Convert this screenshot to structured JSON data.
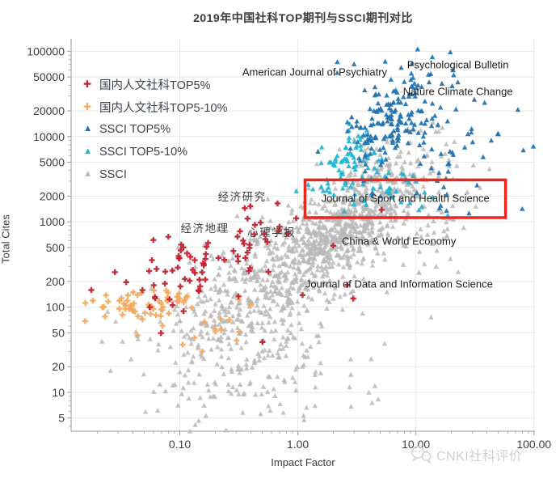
{
  "title": "2019年中国社科TOP期刊与SSCI期刊对比",
  "legend": {
    "items": [
      {
        "id": "domestic-top5",
        "label": "国内人文社科TOP5%",
        "marker": "plus",
        "color": "#c32231"
      },
      {
        "id": "domestic-top5-10",
        "label": "国内人文社科TOP5-10%",
        "marker": "plus",
        "color": "#f2aa60"
      },
      {
        "id": "ssci-top5",
        "label": "SSCI TOP5%",
        "marker": "triangle",
        "color": "#2273b2"
      },
      {
        "id": "ssci-top5-10",
        "label": "SSCI TOP5-10%",
        "marker": "triangle",
        "color": "#22b5d1"
      },
      {
        "id": "ssci",
        "label": "SSCI",
        "marker": "triangle",
        "color": "#b9b9b9"
      }
    ]
  },
  "watermark": {
    "icon": "wechat-icon",
    "text": "CNKI社科评价"
  },
  "chart_data": {
    "type": "scatter",
    "title": "2019年中国社科TOP期刊与SSCI期刊对比",
    "xlabel": "Impact Factor",
    "ylabel": "Total Cites",
    "x_scale": "log",
    "y_scale": "log",
    "x_range": [
      0.012,
      102
    ],
    "y_range": [
      3.5,
      140000
    ],
    "grid": true,
    "legend_position": "top-left",
    "x_ticks": [
      {
        "value": 0.1,
        "label": "0.10"
      },
      {
        "value": 1,
        "label": "1.00"
      },
      {
        "value": 10,
        "label": "10.00"
      },
      {
        "value": 100,
        "label": "100.00"
      }
    ],
    "y_ticks": [
      {
        "value": 100000,
        "label": "100000"
      },
      {
        "value": 50000,
        "label": "50000"
      },
      {
        "value": 20000,
        "label": "20000"
      },
      {
        "value": 10000,
        "label": "10000"
      },
      {
        "value": 5000,
        "label": "5000"
      },
      {
        "value": 2000,
        "label": "2000"
      },
      {
        "value": 1000,
        "label": "1000"
      },
      {
        "value": 500,
        "label": "500"
      },
      {
        "value": 200,
        "label": "200"
      },
      {
        "value": 100,
        "label": "100"
      },
      {
        "value": 50,
        "label": "50"
      },
      {
        "value": 20,
        "label": "20"
      },
      {
        "value": 10,
        "label": "10"
      },
      {
        "value": 5,
        "label": "5"
      }
    ],
    "series": [
      {
        "id": "ssci",
        "name": "SSCI",
        "marker": "triangle",
        "color": "#b9b9b9",
        "opacity": 0.85,
        "seed": 7,
        "clusters": [
          {
            "n": 650,
            "cx": 0.42,
            "cy": 3.02,
            "sx": 0.3,
            "sy": 0.4,
            "rho": 0.72
          },
          {
            "n": 420,
            "cx": -0.28,
            "cy": 2.25,
            "sx": 0.42,
            "sy": 0.45,
            "rho": 0.55
          },
          {
            "n": 140,
            "cx": -0.55,
            "cy": 1.4,
            "sx": 0.45,
            "sy": 0.4,
            "rho": 0.25
          },
          {
            "n": 90,
            "cx": 1.05,
            "cy": 3.15,
            "sx": 0.28,
            "sy": 0.45,
            "rho": 0.2
          },
          {
            "n": 40,
            "cx": 0.1,
            "cy": 1.05,
            "sx": 0.5,
            "sy": 0.3,
            "rho": 0.2
          }
        ],
        "extra_points_log10": []
      },
      {
        "id": "ssci-top5-10",
        "name": "SSCI TOP5-10%",
        "marker": "triangle",
        "color": "#22b5d1",
        "opacity": 0.95,
        "seed": 3,
        "clusters": [
          {
            "n": 80,
            "cx": 0.45,
            "cy": 3.72,
            "sx": 0.16,
            "sy": 0.22,
            "rho": 0.45
          },
          {
            "n": 30,
            "cx": 0.83,
            "cy": 3.38,
            "sx": 0.2,
            "sy": 0.14,
            "rho": 0.2
          }
        ],
        "extra_points_log10": [
          [
            0.95,
            3.22
          ],
          [
            1.05,
            3.18
          ]
        ]
      },
      {
        "id": "ssci-top5",
        "name": "SSCI TOP5%",
        "marker": "triangle",
        "color": "#2273b2",
        "opacity": 0.95,
        "seed": 5,
        "clusters": [
          {
            "n": 145,
            "cx": 0.78,
            "cy": 4.22,
            "sx": 0.18,
            "sy": 0.26,
            "rho": 0.35
          },
          {
            "n": 45,
            "cx": 1.25,
            "cy": 3.95,
            "sx": 0.33,
            "sy": 0.33,
            "rho": 0.1
          },
          {
            "n": 12,
            "cx": 0.95,
            "cy": 4.75,
            "sx": 0.28,
            "sy": 0.12,
            "rho": 0.0
          }
        ],
        "extra_points_log10": [
          [
            0.74,
            4.88
          ],
          [
            1.32,
            4.72
          ],
          [
            1.34,
            4.32
          ],
          [
            1.22,
            4.62
          ],
          [
            1.91,
            3.84
          ],
          [
            0.63,
            3.34
          ],
          [
            0.7,
            3.3
          ],
          [
            1.26,
            3.13
          ],
          [
            1.2,
            3.16
          ],
          [
            1.45,
            3.1
          ],
          [
            1.57,
            3.76
          ],
          [
            1.21,
            3.19
          ]
        ]
      },
      {
        "id": "domestic-top5-10",
        "name": "国内人文社科TOP5-10%",
        "marker": "plus",
        "color": "#f2aa60",
        "opacity": 0.95,
        "seed": 9,
        "clusters": [
          {
            "n": 60,
            "cx": -1.28,
            "cy": 1.99,
            "sx": 0.26,
            "sy": 0.11,
            "rho": 0.15
          },
          {
            "n": 12,
            "cx": -0.8,
            "cy": 1.78,
            "sx": 0.22,
            "sy": 0.18,
            "rho": 0.2
          }
        ],
        "extra_points_log10": [
          [
            -0.81,
            1.48
          ],
          [
            -0.4,
            2.02
          ],
          [
            -1.1,
            2.17
          ]
        ]
      },
      {
        "id": "domestic-top5",
        "name": "国内人文社科TOP5%",
        "marker": "plus",
        "color": "#c32231",
        "opacity": 0.95,
        "seed": 13,
        "clusters": [
          {
            "n": 52,
            "cx": -1.02,
            "cy": 2.38,
            "sx": 0.3,
            "sy": 0.26,
            "rho": 0.5
          },
          {
            "n": 22,
            "cx": -0.48,
            "cy": 2.72,
            "sx": 0.25,
            "sy": 0.28,
            "rho": 0.55
          }
        ],
        "extra_points_log10": [
          [
            0.3,
            2.72
          ],
          [
            0.71,
            3.14
          ],
          [
            0.04,
            2.14
          ],
          [
            0.47,
            2.1
          ],
          [
            -0.3,
            1.59
          ],
          [
            -0.45,
            3.16
          ],
          [
            -0.49,
            2.89
          ],
          [
            -0.97,
            2.7
          ],
          [
            0.42,
            2.26
          ],
          [
            -1.55,
            2.41
          ],
          [
            -1.75,
            2.2
          ]
        ]
      }
    ],
    "annotations": [
      {
        "text": "American Journal of Psychiatry",
        "x": 1.39,
        "y": 57000,
        "lang": "en"
      },
      {
        "text": "Psychological Bulletin",
        "x": 22.7,
        "y": 69000,
        "lang": "en"
      },
      {
        "text": "Nature Climate Change",
        "x": 22.7,
        "y": 34000,
        "lang": "en"
      },
      {
        "text": "经济研究",
        "x": 0.337,
        "y": 2000,
        "lang": "zh"
      },
      {
        "text": "经济地理",
        "x": 0.163,
        "y": 855,
        "lang": "zh"
      },
      {
        "text": "心理学报",
        "x": 0.6,
        "y": 775,
        "lang": "zh"
      },
      {
        "text": "Journal of Sport and Health Science",
        "x": 8.15,
        "y": 1905,
        "lang": "en"
      },
      {
        "text": "China & World Economy",
        "x": 7.18,
        "y": 590,
        "lang": "en"
      },
      {
        "text": "Journal of Data and Information Science",
        "x": 7.2,
        "y": 185,
        "lang": "en"
      }
    ],
    "highlight_box": {
      "x_range": [
        1.15,
        57.5
      ],
      "y_range": [
        1120,
        3100
      ],
      "color": "#e9271e"
    },
    "colors": {
      "grid": "#e8e8e8",
      "axis": "#9a9a9a",
      "tick_label": "#3f3f3f"
    }
  }
}
